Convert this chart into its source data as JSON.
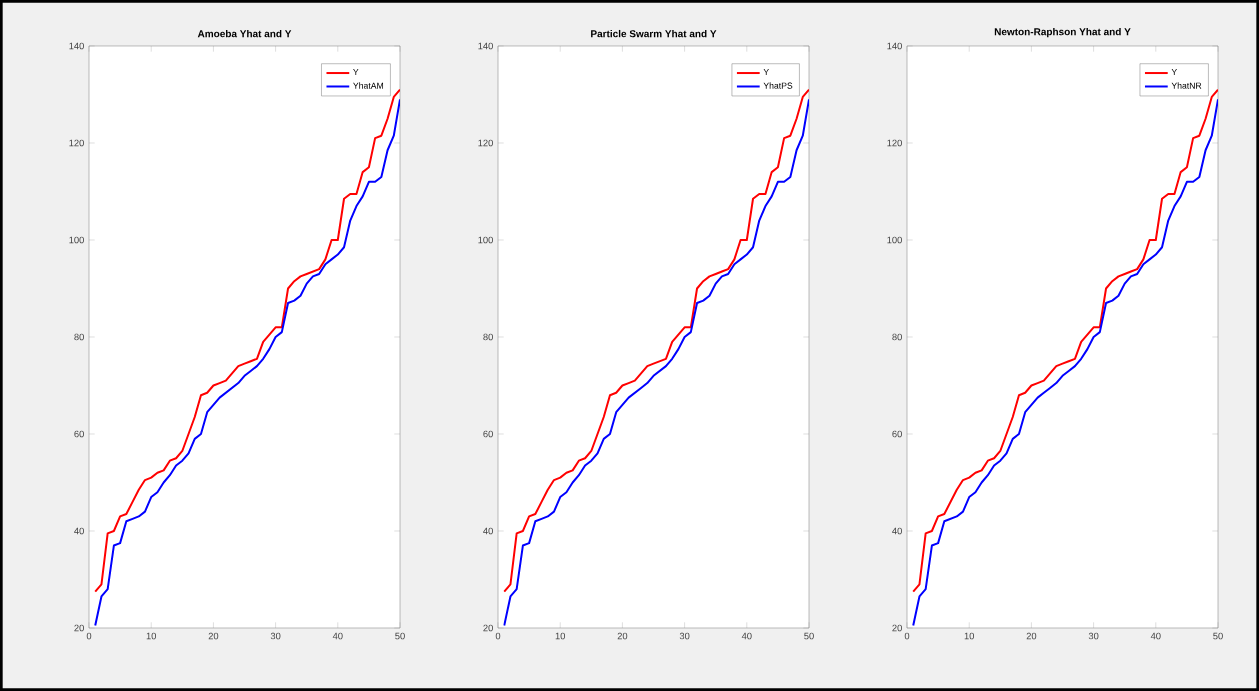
{
  "chart_data": [
    {
      "type": "line",
      "title": "Amoeba Yhat and Y",
      "x": [
        1,
        2,
        3,
        4,
        5,
        6,
        7,
        8,
        9,
        10,
        11,
        12,
        13,
        14,
        15,
        16,
        17,
        18,
        19,
        20,
        21,
        22,
        23,
        24,
        25,
        26,
        27,
        28,
        29,
        30,
        31,
        32,
        33,
        34,
        35,
        36,
        37,
        38,
        39,
        40,
        41,
        42,
        43,
        44,
        45,
        46,
        47,
        48,
        49,
        50
      ],
      "series": [
        {
          "name": "Y",
          "color": "#ff0000",
          "values": [
            27.5,
            29,
            39.5,
            40,
            43,
            43.5,
            46,
            48.5,
            50.5,
            51,
            52,
            52.5,
            54.5,
            55,
            56.5,
            60,
            63.5,
            68,
            68.5,
            70,
            70.5,
            71,
            72.5,
            74,
            74.5,
            75,
            75.5,
            79,
            80.5,
            82,
            82,
            90,
            91.5,
            92.5,
            93,
            93.5,
            94,
            96,
            100,
            100,
            108.5,
            109.5,
            109.5,
            114,
            115,
            121,
            121.5,
            125,
            129.5,
            131
          ]
        },
        {
          "name": "YhatAM",
          "color": "#0000ff",
          "values": [
            20.5,
            26.5,
            28,
            37,
            37.5,
            42,
            42.5,
            43,
            44,
            47,
            48,
            50,
            51.5,
            53.5,
            54.5,
            56,
            59,
            60,
            64.5,
            66,
            67.5,
            68.5,
            69.5,
            70.5,
            72,
            73,
            74,
            75.5,
            77.5,
            80,
            81,
            87,
            87.5,
            88.5,
            91,
            92.5,
            93,
            95,
            96,
            97,
            98.5,
            104,
            107,
            109,
            112,
            112,
            113,
            118.5,
            121.5,
            129
          ]
        }
      ],
      "xlim": [
        0,
        50
      ],
      "ylim": [
        20,
        140
      ],
      "xticks": [
        0,
        10,
        20,
        30,
        40,
        50
      ],
      "yticks": [
        20,
        40,
        60,
        80,
        100,
        120,
        140
      ],
      "legend": "top right",
      "grid": false,
      "line_style": "solid",
      "marker": "none"
    },
    {
      "type": "line",
      "title": "Particle Swarm Yhat and Y",
      "x": [
        1,
        2,
        3,
        4,
        5,
        6,
        7,
        8,
        9,
        10,
        11,
        12,
        13,
        14,
        15,
        16,
        17,
        18,
        19,
        20,
        21,
        22,
        23,
        24,
        25,
        26,
        27,
        28,
        29,
        30,
        31,
        32,
        33,
        34,
        35,
        36,
        37,
        38,
        39,
        40,
        41,
        42,
        43,
        44,
        45,
        46,
        47,
        48,
        49,
        50
      ],
      "series": [
        {
          "name": "Y",
          "color": "#ff0000",
          "values": [
            27.5,
            29,
            39.5,
            40,
            43,
            43.5,
            46,
            48.5,
            50.5,
            51,
            52,
            52.5,
            54.5,
            55,
            56.5,
            60,
            63.5,
            68,
            68.5,
            70,
            70.5,
            71,
            72.5,
            74,
            74.5,
            75,
            75.5,
            79,
            80.5,
            82,
            82,
            90,
            91.5,
            92.5,
            93,
            93.5,
            94,
            96,
            100,
            100,
            108.5,
            109.5,
            109.5,
            114,
            115,
            121,
            121.5,
            125,
            129.5,
            131
          ]
        },
        {
          "name": "YhatPS",
          "color": "#0000ff",
          "values": [
            20.5,
            26.5,
            28,
            37,
            37.5,
            42,
            42.5,
            43,
            44,
            47,
            48,
            50,
            51.5,
            53.5,
            54.5,
            56,
            59,
            60,
            64.5,
            66,
            67.5,
            68.5,
            69.5,
            70.5,
            72,
            73,
            74,
            75.5,
            77.5,
            80,
            81,
            87,
            87.5,
            88.5,
            91,
            92.5,
            93,
            95,
            96,
            97,
            98.5,
            104,
            107,
            109,
            112,
            112,
            113,
            118.5,
            121.5,
            129
          ]
        }
      ],
      "xlim": [
        0,
        50
      ],
      "ylim": [
        20,
        140
      ],
      "xticks": [
        0,
        10,
        20,
        30,
        40,
        50
      ],
      "yticks": [
        20,
        40,
        60,
        80,
        100,
        120,
        140
      ],
      "legend": "top right",
      "grid": false,
      "line_style": "solid",
      "marker": "none"
    },
    {
      "type": "line",
      "title": "Newton-Raphson Yhat and Y",
      "x": [
        1,
        2,
        3,
        4,
        5,
        6,
        7,
        8,
        9,
        10,
        11,
        12,
        13,
        14,
        15,
        16,
        17,
        18,
        19,
        20,
        21,
        22,
        23,
        24,
        25,
        26,
        27,
        28,
        29,
        30,
        31,
        32,
        33,
        34,
        35,
        36,
        37,
        38,
        39,
        40,
        41,
        42,
        43,
        44,
        45,
        46,
        47,
        48,
        49,
        50
      ],
      "series": [
        {
          "name": "Y",
          "color": "#ff0000",
          "values": [
            27.5,
            29,
            39.5,
            40,
            43,
            43.5,
            46,
            48.5,
            50.5,
            51,
            52,
            52.5,
            54.5,
            55,
            56.5,
            60,
            63.5,
            68,
            68.5,
            70,
            70.5,
            71,
            72.5,
            74,
            74.5,
            75,
            75.5,
            79,
            80.5,
            82,
            82,
            90,
            91.5,
            92.5,
            93,
            93.5,
            94,
            96,
            100,
            100,
            108.5,
            109.5,
            109.5,
            114,
            115,
            121,
            121.5,
            125,
            129.5,
            131
          ]
        },
        {
          "name": "YhatNR",
          "color": "#0000ff",
          "values": [
            20.5,
            26.5,
            28,
            37,
            37.5,
            42,
            42.5,
            43,
            44,
            47,
            48,
            50,
            51.5,
            53.5,
            54.5,
            56,
            59,
            60,
            64.5,
            66,
            67.5,
            68.5,
            69.5,
            70.5,
            72,
            73,
            74,
            75.5,
            77.5,
            80,
            81,
            87,
            87.5,
            88.5,
            91,
            92.5,
            93,
            95,
            96,
            97,
            98.5,
            104,
            107,
            109,
            112,
            112,
            113,
            118.5,
            121.5,
            129
          ]
        }
      ],
      "xlim": [
        0,
        50
      ],
      "ylim": [
        20,
        140
      ],
      "xticks": [
        0,
        10,
        20,
        30,
        40,
        50
      ],
      "yticks": [
        20,
        40,
        60,
        80,
        100,
        120,
        140
      ],
      "legend": "top right",
      "grid": false,
      "line_style": "solid",
      "marker": "none"
    }
  ]
}
